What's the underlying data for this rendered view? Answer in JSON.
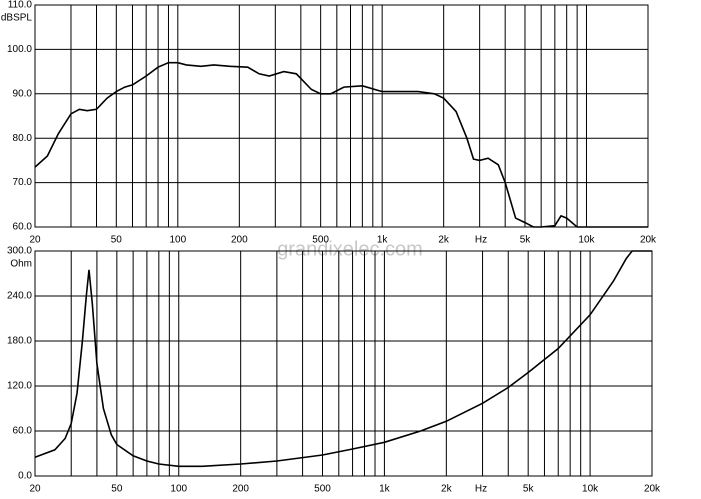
{
  "watermark": "grandixelec.com",
  "chart_data": [
    {
      "type": "line",
      "ylabel": "dBSPL",
      "xlabel": "Hz",
      "xscale": "log",
      "grid": true,
      "color": "#000000",
      "xlim": [
        20,
        20000
      ],
      "ylim": [
        60,
        110
      ],
      "yticks": [
        {
          "value": 110,
          "label": "110.0"
        },
        {
          "value": 100,
          "label": "100.0"
        },
        {
          "value": 90,
          "label": "90.0"
        },
        {
          "value": 80,
          "label": "80.0"
        },
        {
          "value": 70,
          "label": "70.0"
        },
        {
          "value": 60,
          "label": "60.0"
        }
      ],
      "xticks": [
        20,
        50,
        100,
        200,
        500,
        {
          "value": 1000,
          "label": "1k"
        },
        {
          "value": 2000,
          "label": "2k"
        },
        {
          "value": 5000,
          "label": "5k"
        },
        {
          "value": 10000,
          "label": "10k"
        },
        {
          "value": 20000,
          "label": "20k"
        }
      ],
      "xgrid": [
        20,
        30,
        40,
        50,
        60,
        70,
        80,
        90,
        100,
        200,
        300,
        400,
        500,
        600,
        700,
        800,
        900,
        1000,
        2000,
        3000,
        4000,
        5000,
        6000,
        7000,
        8000,
        9000,
        10000,
        20000
      ],
      "x": [
        20,
        23,
        26,
        30,
        33,
        36,
        40,
        45,
        50,
        55,
        60,
        70,
        80,
        90,
        100,
        110,
        130,
        150,
        180,
        220,
        250,
        280,
        330,
        380,
        450,
        500,
        560,
        650,
        800,
        1000,
        1200,
        1500,
        1800,
        2000,
        2300,
        2600,
        2800,
        3000,
        3300,
        3700,
        4000,
        4500,
        5000,
        5500,
        6000,
        7000,
        7500,
        8000,
        9000,
        20000
      ],
      "values": [
        73.5,
        76,
        81,
        85.5,
        86.5,
        86.2,
        86.5,
        89,
        90.5,
        91.5,
        92,
        94,
        96,
        97,
        97,
        96.5,
        96.2,
        96.5,
        96.2,
        96,
        94.5,
        94,
        95,
        94.5,
        91,
        90,
        90,
        91.5,
        91.8,
        90.5,
        90.5,
        90.5,
        90,
        89,
        86,
        80,
        75.3,
        75,
        75.5,
        74,
        70,
        62,
        61,
        60,
        60,
        60.3,
        62.5,
        62,
        60,
        60
      ]
    },
    {
      "type": "line",
      "ylabel": "Ohm",
      "xlabel": "Hz",
      "xscale": "log",
      "grid": true,
      "color": "#000000",
      "xlim": [
        20,
        20000
      ],
      "ylim": [
        0,
        300
      ],
      "yticks": [
        {
          "value": 300,
          "label": "300.0"
        },
        {
          "value": 240,
          "label": "240.0"
        },
        {
          "value": 180,
          "label": "180.0"
        },
        {
          "value": 120,
          "label": "120.0"
        },
        {
          "value": 60,
          "label": "60.0"
        },
        {
          "value": 0,
          "label": "0.0"
        }
      ],
      "xticks": [
        20,
        50,
        100,
        200,
        500,
        {
          "value": 1000,
          "label": "1k"
        },
        {
          "value": 2000,
          "label": "2k"
        },
        {
          "value": 5000,
          "label": "5k"
        },
        {
          "value": 10000,
          "label": "10k"
        },
        {
          "value": 20000,
          "label": "20k"
        }
      ],
      "xgrid": [
        20,
        30,
        40,
        50,
        60,
        70,
        80,
        90,
        100,
        200,
        300,
        400,
        500,
        600,
        700,
        800,
        900,
        1000,
        2000,
        3000,
        4000,
        5000,
        6000,
        7000,
        8000,
        9000,
        10000,
        20000
      ],
      "x": [
        20,
        25,
        28,
        30,
        32,
        34,
        35.5,
        36.6,
        38,
        40,
        43,
        47,
        50,
        60,
        70,
        80,
        100,
        130,
        200,
        300,
        500,
        700,
        1000,
        1500,
        2000,
        3000,
        4000,
        5000,
        7000,
        10000,
        13000,
        15000,
        16000,
        20000
      ],
      "values": [
        25,
        35,
        50,
        70,
        110,
        180,
        240,
        275,
        230,
        150,
        90,
        55,
        42,
        27,
        20,
        16,
        13,
        13,
        16,
        20,
        28,
        36,
        45,
        60,
        73,
        97,
        118,
        138,
        170,
        215,
        260,
        290,
        300,
        300
      ]
    }
  ]
}
